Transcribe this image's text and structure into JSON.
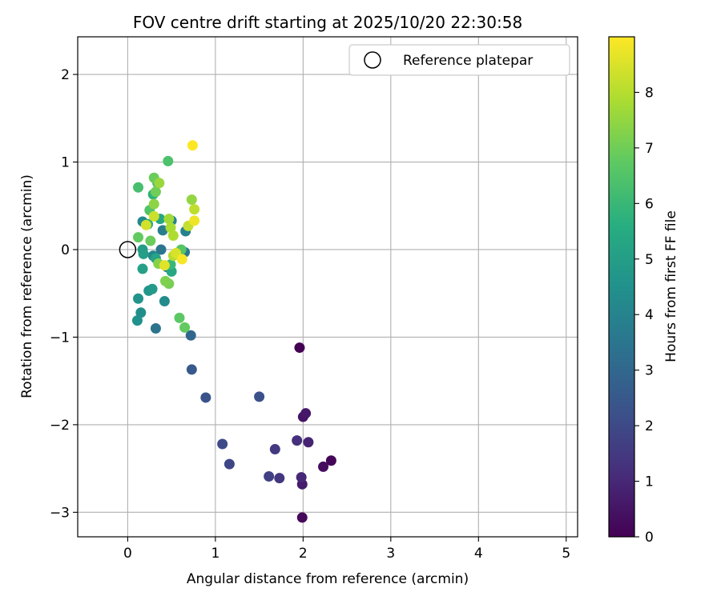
{
  "chart_data": {
    "type": "scatter",
    "title": "FOV centre drift starting at 2025/10/20 22:30:58",
    "xlabel": "Angular distance from reference (arcmin)",
    "ylabel": "Rotation from reference (arcmin)",
    "xlim": [
      -0.57,
      5.13
    ],
    "ylim": [
      -3.28,
      2.43
    ],
    "xticks": [
      0,
      1,
      2,
      3,
      4,
      5
    ],
    "yticks": [
      -3,
      -2,
      -1,
      0,
      1,
      2
    ],
    "grid": true,
    "legend": {
      "position": "top-right",
      "entries": [
        "Reference platepar"
      ]
    },
    "reference_point": {
      "x": 0,
      "y": 0,
      "label": "Reference platepar"
    },
    "colorbar": {
      "label": "Hours from first FF file",
      "min": 0,
      "max": 9,
      "ticks": [
        0,
        1,
        2,
        3,
        4,
        5,
        6,
        7,
        8
      ],
      "colormap": "viridis"
    },
    "series": [
      {
        "points": [
          {
            "x": 1.96,
            "y": -1.12,
            "c": 0.0
          },
          {
            "x": 2.32,
            "y": -2.41,
            "c": 0.1
          },
          {
            "x": 1.99,
            "y": -3.06,
            "c": 0.2
          },
          {
            "x": 2.23,
            "y": -2.48,
            "c": 0.3
          },
          {
            "x": 2.0,
            "y": -1.91,
            "c": 0.5
          },
          {
            "x": 2.03,
            "y": -1.87,
            "c": 0.6
          },
          {
            "x": 1.99,
            "y": -2.68,
            "c": 0.7
          },
          {
            "x": 2.06,
            "y": -2.2,
            "c": 0.9
          },
          {
            "x": 1.98,
            "y": -2.6,
            "c": 1.0
          },
          {
            "x": 1.93,
            "y": -2.18,
            "c": 1.2
          },
          {
            "x": 1.73,
            "y": -2.61,
            "c": 1.4
          },
          {
            "x": 1.68,
            "y": -2.28,
            "c": 1.5
          },
          {
            "x": 1.61,
            "y": -2.59,
            "c": 1.7
          },
          {
            "x": 1.16,
            "y": -2.45,
            "c": 1.9
          },
          {
            "x": 1.08,
            "y": -2.22,
            "c": 2.0
          },
          {
            "x": 1.5,
            "y": -1.68,
            "c": 2.2
          },
          {
            "x": 0.89,
            "y": -1.69,
            "c": 2.3
          },
          {
            "x": 0.73,
            "y": -1.37,
            "c": 2.5
          },
          {
            "x": 0.72,
            "y": -0.98,
            "c": 3.0
          },
          {
            "x": 0.32,
            "y": -0.9,
            "c": 3.4
          },
          {
            "x": 0.38,
            "y": 0.0,
            "c": 3.5
          },
          {
            "x": 0.65,
            "y": -0.03,
            "c": 3.6
          },
          {
            "x": 0.45,
            "y": -0.2,
            "c": 3.7
          },
          {
            "x": 0.4,
            "y": 0.22,
            "c": 3.8
          },
          {
            "x": 0.66,
            "y": 0.21,
            "c": 3.9
          },
          {
            "x": 0.5,
            "y": 0.33,
            "c": 4.0
          },
          {
            "x": 0.29,
            "y": -0.07,
            "c": 4.1
          },
          {
            "x": 0.17,
            "y": 0.32,
            "c": 4.2
          },
          {
            "x": 0.42,
            "y": -0.59,
            "c": 4.3
          },
          {
            "x": 0.15,
            "y": -0.72,
            "c": 4.4
          },
          {
            "x": 0.11,
            "y": -0.81,
            "c": 4.5
          },
          {
            "x": 0.12,
            "y": -0.56,
            "c": 4.6
          },
          {
            "x": 0.24,
            "y": -0.47,
            "c": 4.7
          },
          {
            "x": 0.28,
            "y": -0.45,
            "c": 4.8
          },
          {
            "x": 0.17,
            "y": 0.0,
            "c": 4.9
          },
          {
            "x": 0.18,
            "y": -0.05,
            "c": 5.0
          },
          {
            "x": 0.17,
            "y": -0.22,
            "c": 5.1
          },
          {
            "x": 0.32,
            "y": -0.1,
            "c": 5.2
          },
          {
            "x": 0.37,
            "y": 0.35,
            "c": 5.3
          },
          {
            "x": 0.5,
            "y": -0.25,
            "c": 5.4
          },
          {
            "x": 0.23,
            "y": 0.29,
            "c": 5.5
          },
          {
            "x": 0.29,
            "y": 0.63,
            "c": 5.8
          },
          {
            "x": 0.49,
            "y": -0.17,
            "c": 6.0
          },
          {
            "x": 0.34,
            "y": 0.76,
            "c": 6.2
          },
          {
            "x": 0.12,
            "y": 0.71,
            "c": 6.3
          },
          {
            "x": 0.46,
            "y": 1.01,
            "c": 6.4
          },
          {
            "x": 0.25,
            "y": 0.45,
            "c": 6.5
          },
          {
            "x": 0.61,
            "y": 0.0,
            "c": 6.6
          },
          {
            "x": 0.59,
            "y": -0.78,
            "c": 6.7
          },
          {
            "x": 0.65,
            "y": -0.89,
            "c": 6.8
          },
          {
            "x": 0.12,
            "y": 0.14,
            "c": 6.8
          },
          {
            "x": 0.26,
            "y": 0.1,
            "c": 6.9
          },
          {
            "x": 0.3,
            "y": 0.82,
            "c": 6.9
          },
          {
            "x": 0.32,
            "y": 0.66,
            "c": 7.0
          },
          {
            "x": 0.47,
            "y": -0.39,
            "c": 7.1
          },
          {
            "x": 0.43,
            "y": -0.36,
            "c": 7.2
          },
          {
            "x": 0.35,
            "y": -0.16,
            "c": 7.3
          },
          {
            "x": 0.3,
            "y": 0.52,
            "c": 7.4
          },
          {
            "x": 0.73,
            "y": 0.57,
            "c": 7.5
          },
          {
            "x": 0.36,
            "y": 0.76,
            "c": 7.6
          },
          {
            "x": 0.47,
            "y": 0.35,
            "c": 7.7
          },
          {
            "x": 0.49,
            "y": 0.25,
            "c": 7.8
          },
          {
            "x": 0.52,
            "y": 0.16,
            "c": 7.9
          },
          {
            "x": 0.52,
            "y": -0.07,
            "c": 8.0
          },
          {
            "x": 0.76,
            "y": 0.46,
            "c": 8.1
          },
          {
            "x": 0.69,
            "y": 0.27,
            "c": 8.2
          },
          {
            "x": 0.3,
            "y": 0.38,
            "c": 8.3
          },
          {
            "x": 0.21,
            "y": 0.28,
            "c": 8.4
          },
          {
            "x": 0.55,
            "y": -0.04,
            "c": 8.5
          },
          {
            "x": 0.42,
            "y": -0.18,
            "c": 8.6
          },
          {
            "x": 0.76,
            "y": 0.33,
            "c": 8.8
          },
          {
            "x": 0.62,
            "y": -0.11,
            "c": 8.9
          },
          {
            "x": 0.74,
            "y": 1.19,
            "c": 9.0
          }
        ]
      }
    ]
  }
}
